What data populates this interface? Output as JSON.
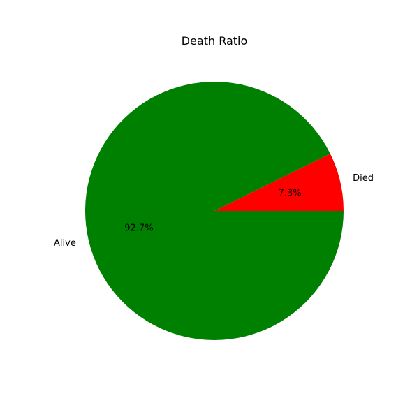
{
  "chart_data": {
    "type": "pie",
    "title": "Death Ratio",
    "slices": [
      {
        "label": "Died",
        "value": 7.3,
        "pct_label": "7.3%",
        "color": "#ff0000"
      },
      {
        "label": "Alive",
        "value": 92.7,
        "pct_label": "92.7%",
        "color": "#008000"
      }
    ],
    "start_angle_deg": 0,
    "direction": "counterclockwise"
  }
}
